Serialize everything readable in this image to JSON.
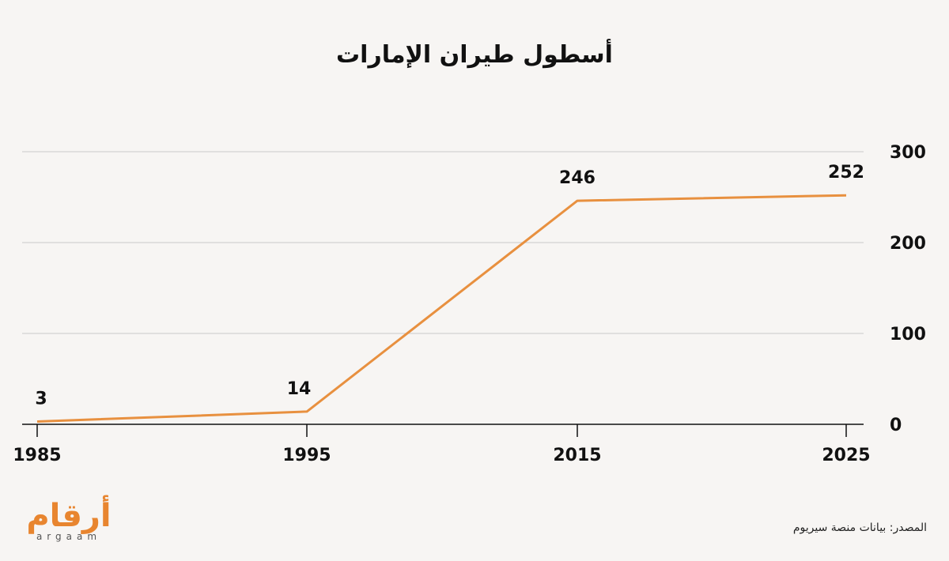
{
  "chart_data": {
    "type": "line",
    "title": "أسطول طيران الإمارات",
    "x": [
      "1985",
      "1995",
      "2015",
      "2025"
    ],
    "series": [
      {
        "values": [
          3,
          14,
          246,
          252
        ]
      }
    ],
    "data_labels": [
      "3",
      "14",
      "246",
      "252"
    ],
    "yticks": [
      0,
      100,
      200,
      300
    ],
    "ylim": [
      0,
      300
    ],
    "grid": true,
    "yaxis_side": "right",
    "colors": {
      "line": "#e8903f",
      "grid": "#c9c9c9",
      "axis": "#111111"
    }
  },
  "source": "المصدر: بيانات منصة سيريوم",
  "logo": {
    "arabic": "أرقام",
    "latin": "argaam",
    "color": "#e8852f"
  }
}
